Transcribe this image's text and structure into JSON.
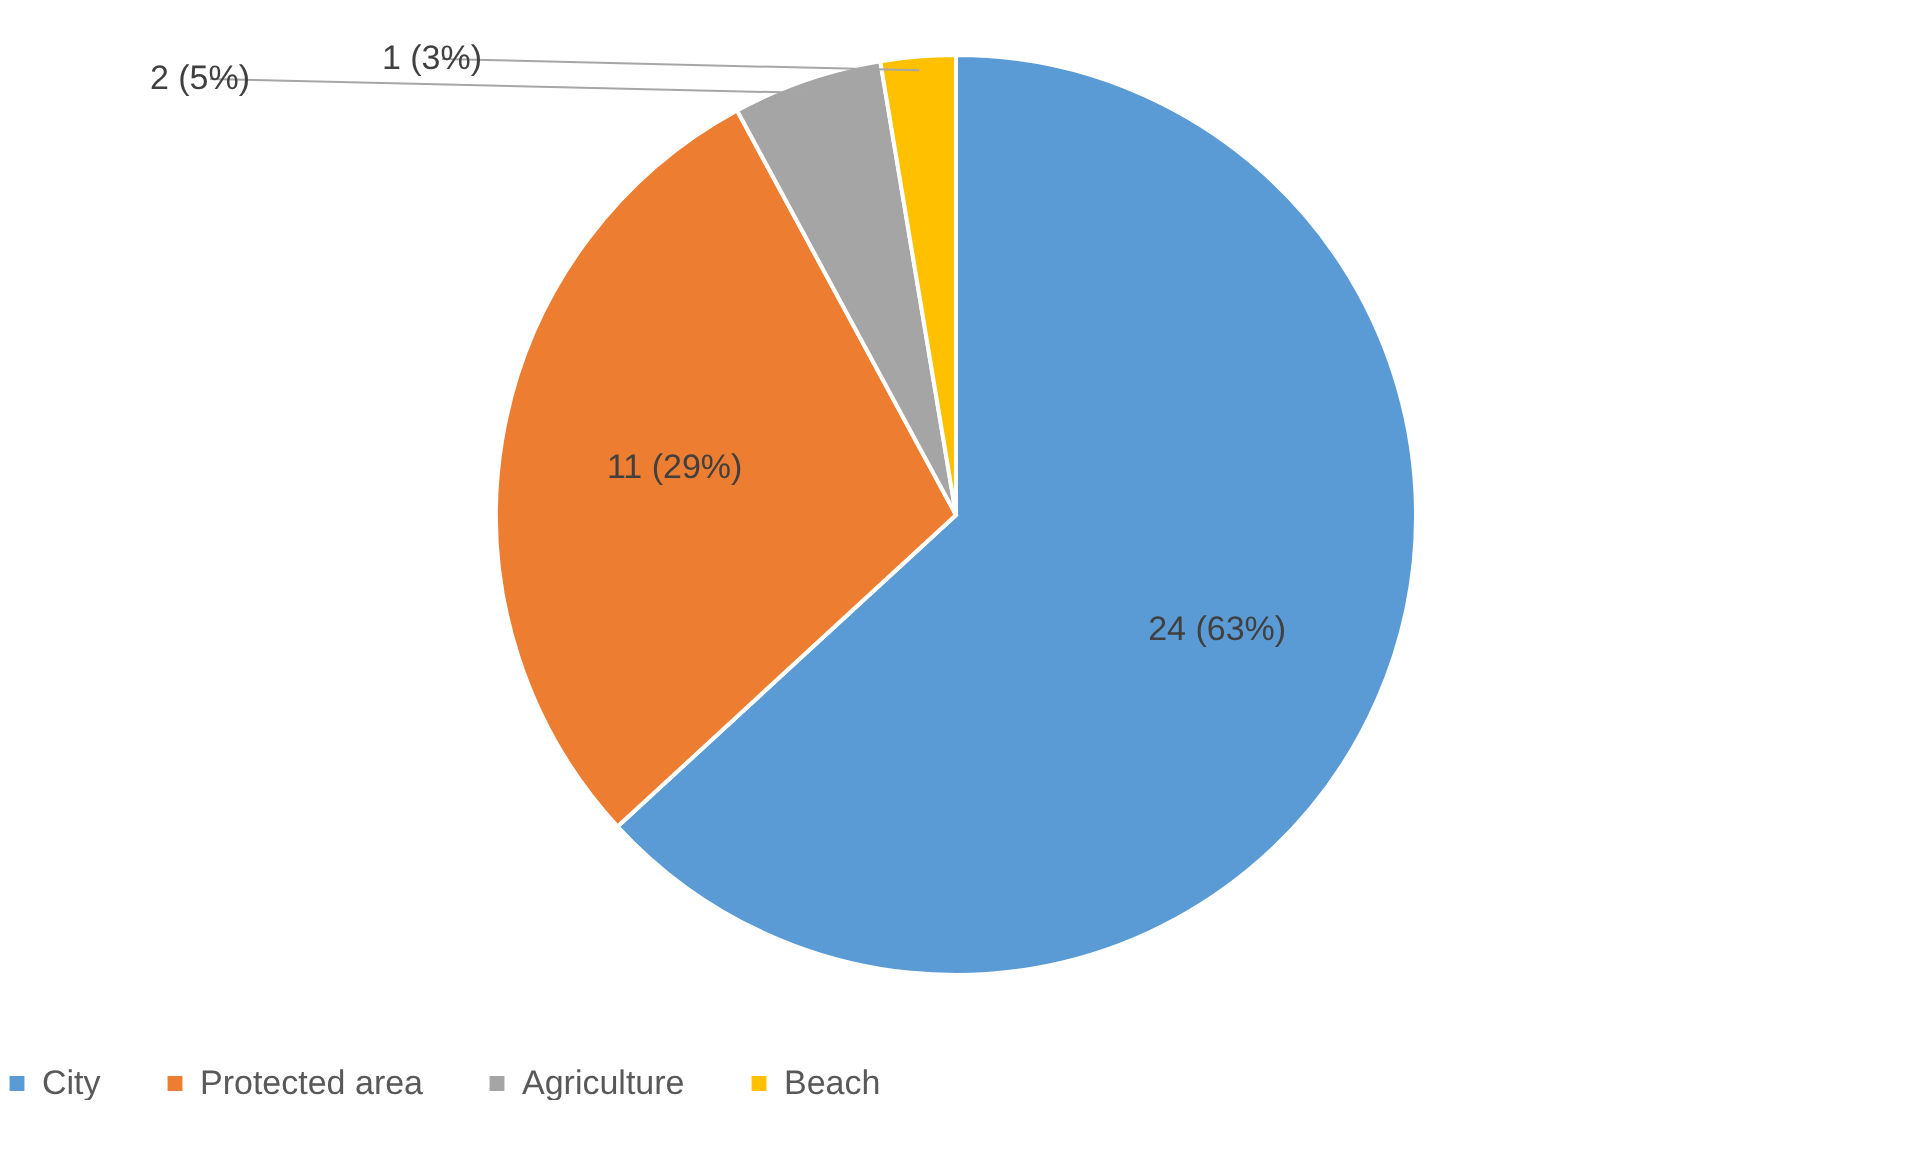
{
  "chart_data": {
    "type": "pie",
    "categories": [
      "City",
      "Protected area",
      "Agriculture",
      "Beach"
    ],
    "values": [
      24,
      11,
      2,
      1
    ],
    "colors": [
      "#5b9bd5",
      "#ed7d31",
      "#a5a5a5",
      "#ffc000"
    ],
    "value_labels": [
      "24 (63%)",
      "11 (29%)",
      "2 (5%)",
      "1 (3%)"
    ],
    "legend": "bottom"
  }
}
